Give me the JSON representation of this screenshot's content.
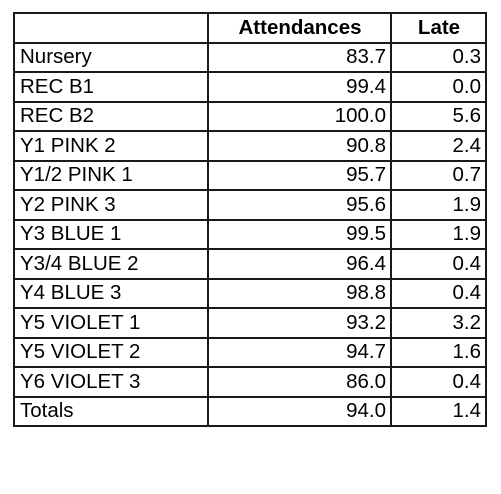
{
  "table": {
    "headers": [
      "",
      "Attendances",
      "Late"
    ],
    "rows": [
      {
        "name": "Nursery",
        "attendances": "83.7",
        "late": "0.3"
      },
      {
        "name": "REC B1",
        "attendances": "99.4",
        "late": "0.0"
      },
      {
        "name": "REC B2",
        "attendances": "100.0",
        "late": "5.6"
      },
      {
        "name": "Y1 PINK 2",
        "attendances": "90.8",
        "late": "2.4"
      },
      {
        "name": "Y1/2 PINK 1",
        "attendances": "95.7",
        "late": "0.7"
      },
      {
        "name": "Y2 PINK 3",
        "attendances": "95.6",
        "late": "1.9"
      },
      {
        "name": "Y3 BLUE 1",
        "attendances": "99.5",
        "late": "1.9"
      },
      {
        "name": "Y3/4 BLUE 2",
        "attendances": "96.4",
        "late": "0.4"
      },
      {
        "name": "Y4 BLUE 3",
        "attendances": "98.8",
        "late": "0.4"
      },
      {
        "name": "Y5 VIOLET 1",
        "attendances": "93.2",
        "late": "3.2"
      },
      {
        "name": "Y5 VIOLET 2",
        "attendances": "94.7",
        "late": "1.6"
      },
      {
        "name": "Y6 VIOLET 3",
        "attendances": "86.0",
        "late": "0.4"
      },
      {
        "name": "Totals",
        "attendances": "94.0",
        "late": "1.4"
      }
    ]
  }
}
